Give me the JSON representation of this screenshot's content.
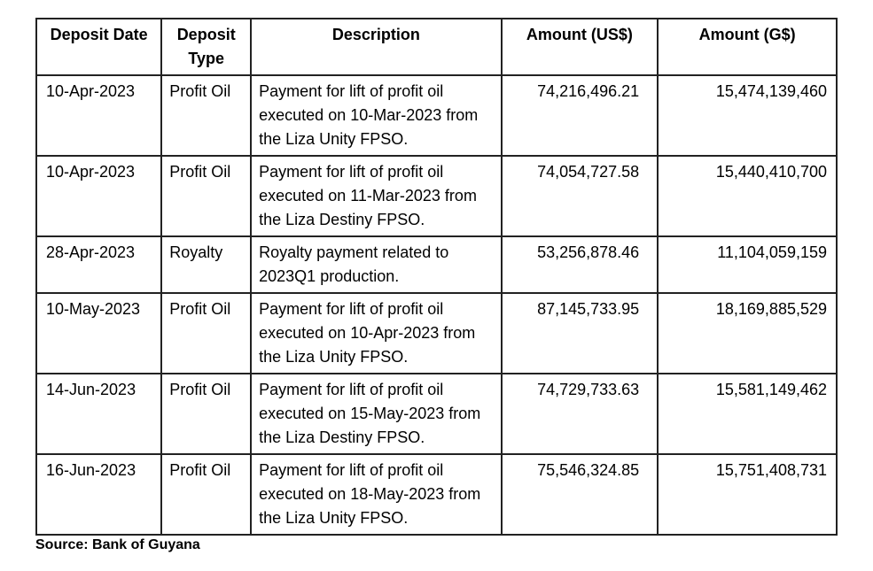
{
  "table": {
    "columns": [
      {
        "key": "date",
        "label": "Deposit Date"
      },
      {
        "key": "type",
        "label": "Deposit Type"
      },
      {
        "key": "desc",
        "label": "Description"
      },
      {
        "key": "usd",
        "label": "Amount (US$)"
      },
      {
        "key": "gyd",
        "label": "Amount (G$)"
      }
    ],
    "rows": [
      {
        "date": "10-Apr-2023",
        "type": "Profit Oil",
        "desc": "Payment for lift of profit oil executed on 10-Mar-2023 from the Liza Unity FPSO.",
        "usd": "74,216,496.21",
        "gyd": "15,474,139,460"
      },
      {
        "date": "10-Apr-2023",
        "type": "Profit Oil",
        "desc": "Payment for lift of profit oil executed on 11-Mar-2023 from the Liza Destiny FPSO.",
        "usd": "74,054,727.58",
        "gyd": "15,440,410,700"
      },
      {
        "date": "28-Apr-2023",
        "type": "Royalty",
        "desc": "Royalty payment related to 2023Q1 production.",
        "usd": "53,256,878.46",
        "gyd": "11,104,059,159"
      },
      {
        "date": "10-May-2023",
        "type": "Profit Oil",
        "desc": "Payment for lift of profit oil executed on 10-Apr-2023 from the Liza Unity FPSO.",
        "usd": "87,145,733.95",
        "gyd": "18,169,885,529"
      },
      {
        "date": "14-Jun-2023",
        "type": "Profit Oil",
        "desc": "Payment for lift of profit oil executed on 15-May-2023 from the Liza Destiny FPSO.",
        "usd": "74,729,733.63",
        "gyd": "15,581,149,462"
      },
      {
        "date": "16-Jun-2023",
        "type": "Profit Oil",
        "desc": "Payment for lift of profit oil executed on 18-May-2023 from the Liza Unity FPSO.",
        "usd": "75,546,324.85",
        "gyd": "15,751,408,731"
      }
    ]
  },
  "source_label": "Source: Bank of Guyana"
}
